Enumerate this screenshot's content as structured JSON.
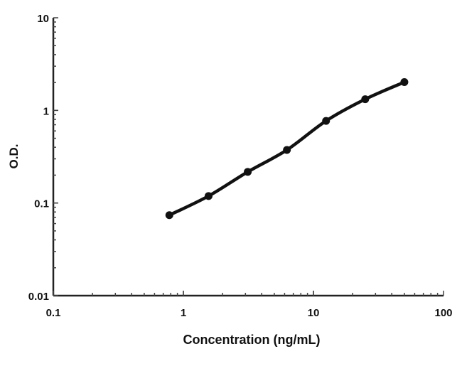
{
  "chart_data": {
    "type": "line",
    "title": "",
    "xlabel": "Concentration (ng/mL)",
    "ylabel": "O.D.",
    "x_scale": "log",
    "y_scale": "log",
    "xlim": [
      0.1,
      100
    ],
    "ylim": [
      0.01,
      10
    ],
    "x_ticks": [
      "0.1",
      "1",
      "10",
      "100"
    ],
    "y_ticks": [
      "0.01",
      "0.1",
      "1",
      "10"
    ],
    "grid": false,
    "series": [
      {
        "x": [
          0.78,
          1.5625,
          3.125,
          6.25,
          12.5,
          25,
          50
        ],
        "y": [
          0.074,
          0.119,
          0.217,
          0.374,
          0.77,
          1.32,
          2.02
        ],
        "color": "#111111",
        "marker": "circle"
      }
    ]
  }
}
